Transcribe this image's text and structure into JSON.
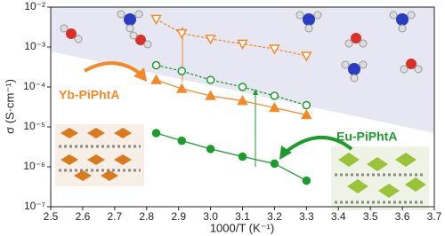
{
  "chart_data": {
    "type": "line",
    "x_label": "1000/T (K⁻¹)",
    "y_label": "σ (S·cm⁻¹)",
    "annotations": [
      "Yb-PiPhtA",
      "Eu-PiPhtA"
    ],
    "annotation_colors": [
      "#f08a2c",
      "#1e9a2e"
    ],
    "x": [
      2.83,
      2.91,
      3.0,
      3.1,
      3.2,
      3.3
    ],
    "series": [
      {
        "color": "#f08a2c",
        "marker": "triangle-down",
        "filled": false,
        "dashed": true,
        "values": [
          0.005,
          0.0022,
          0.0016,
          0.0012,
          0.0009,
          0.0006
        ]
      },
      {
        "color": "#1e9a2e",
        "marker": "circle",
        "filled": false,
        "dashed": true,
        "values": [
          0.00035,
          0.00025,
          0.00015,
          0.0001,
          6e-05,
          3.5e-05
        ]
      },
      {
        "color": "#f08a2c",
        "marker": "triangle",
        "filled": true,
        "dashed": false,
        "values": [
          0.00015,
          9e-05,
          6e-05,
          4.5e-05,
          3e-05,
          2e-05
        ]
      },
      {
        "color": "#1e9a2e",
        "marker": "circle",
        "filled": true,
        "dashed": false,
        "values": [
          7e-06,
          4.5e-06,
          2.8e-06,
          1.8e-06,
          1.2e-06,
          4.5e-07
        ]
      }
    ],
    "xlim": [
      2.5,
      3.7
    ],
    "xticks": [
      2.5,
      2.6,
      2.7,
      2.8,
      2.9,
      {
        "value": 3,
        "label": "3.0"
      },
      3.1,
      3.2,
      3.3,
      3.4,
      3.5,
      3.6,
      3.7
    ],
    "ylim": [
      1e-07,
      0.01
    ],
    "yticks": [
      {
        "value": 1e-07,
        "label": "10⁻⁷"
      },
      {
        "value": 1e-06,
        "label": "10⁻⁶"
      },
      {
        "value": 1e-05,
        "label": "10⁻⁵"
      },
      {
        "value": 0.0001,
        "label": "10⁻⁴"
      },
      {
        "value": 0.001,
        "label": "10⁻³"
      },
      {
        "value": 0.01,
        "label": "10⁻²"
      }
    ],
    "y_scale": "log"
  }
}
